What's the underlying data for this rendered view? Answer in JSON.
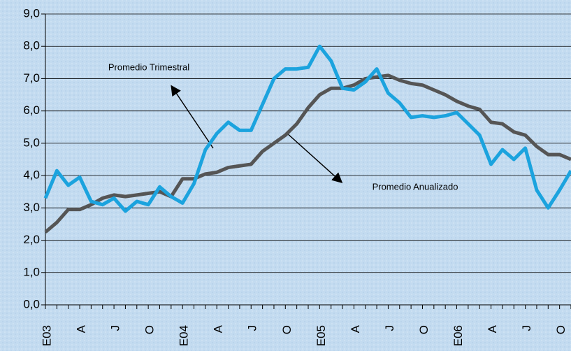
{
  "chart_data": {
    "type": "line",
    "categories": [
      "E03",
      null,
      null,
      "A",
      null,
      null,
      "J",
      null,
      null,
      "O",
      null,
      null,
      "E04",
      null,
      null,
      "A",
      null,
      null,
      "J",
      null,
      null,
      "O",
      null,
      null,
      "E05",
      null,
      null,
      "A",
      null,
      null,
      "J",
      null,
      null,
      "O",
      null,
      null,
      "E06",
      null,
      null,
      "A",
      null,
      null,
      "J",
      null,
      null,
      "O",
      null
    ],
    "series": [
      {
        "name": "Promedio Trimestral",
        "color": "#1ba3de",
        "values": [
          3.3,
          4.15,
          3.7,
          3.95,
          3.2,
          3.1,
          3.3,
          2.9,
          3.2,
          3.1,
          3.65,
          3.35,
          3.15,
          3.75,
          4.8,
          5.3,
          5.65,
          5.4,
          5.4,
          6.2,
          7.0,
          7.3,
          7.3,
          7.35,
          8.0,
          7.55,
          6.7,
          6.65,
          6.9,
          7.3,
          6.55,
          6.25,
          5.8,
          5.85,
          5.8,
          5.85,
          5.95,
          5.6,
          5.25,
          4.35,
          4.8,
          4.5,
          4.85,
          3.55,
          3.0,
          3.55,
          4.15
        ]
      },
      {
        "name": "Promedio Anualizado",
        "color": "#555555",
        "values": [
          2.25,
          2.55,
          2.95,
          2.95,
          3.1,
          3.3,
          3.4,
          3.35,
          3.4,
          3.45,
          3.5,
          3.35,
          3.9,
          3.9,
          4.05,
          4.1,
          4.25,
          4.3,
          4.35,
          4.75,
          5.0,
          5.25,
          5.6,
          6.1,
          6.5,
          6.7,
          6.7,
          6.8,
          7.0,
          7.05,
          7.1,
          6.95,
          6.85,
          6.8,
          6.65,
          6.5,
          6.3,
          6.15,
          6.05,
          5.65,
          5.6,
          5.35,
          5.25,
          4.9,
          4.65,
          4.65,
          4.5
        ]
      }
    ],
    "ylim": [
      0,
      9
    ],
    "yticks": [
      {
        "value": 0,
        "label": "0,0"
      },
      {
        "value": 1,
        "label": "1,0"
      },
      {
        "value": 2,
        "label": "2,0"
      },
      {
        "value": 3,
        "label": "3,0"
      },
      {
        "value": 4,
        "label": "4,0"
      },
      {
        "value": 5,
        "label": "5,0"
      },
      {
        "value": 6,
        "label": "6,0"
      },
      {
        "value": 7,
        "label": "7,0"
      },
      {
        "value": 8,
        "label": "8,0"
      },
      {
        "value": 9,
        "label": "9,0"
      }
    ],
    "grid": true,
    "annotations": [
      {
        "text": "Promedio Trimestral"
      },
      {
        "text": "Promedio Anualizado"
      }
    ]
  }
}
